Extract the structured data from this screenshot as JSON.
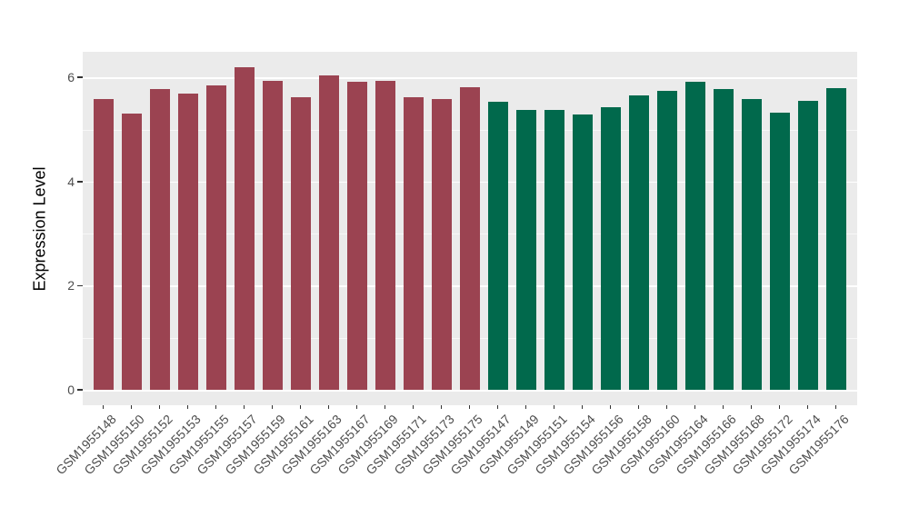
{
  "chart_data": {
    "type": "bar",
    "title": "",
    "xlabel": "",
    "ylabel": "Expression Level",
    "ylim": [
      -0.31,
      6.51
    ],
    "yticks": [
      0,
      2,
      4,
      6
    ],
    "yticks_minor": [
      1,
      3,
      5
    ],
    "grid": true,
    "legend_position": "none",
    "group_colors": [
      "#9B4351",
      "#01694C"
    ],
    "panel_background": "#EBEBEB",
    "grid_color": "#FFFFFF",
    "tick_mark_color": "#333333",
    "tick_label_color": "#4D4D4D",
    "axis_title_color": "#000000",
    "bars": [
      {
        "label": "GSM1955148",
        "value": 5.59,
        "group": 0
      },
      {
        "label": "GSM1955150",
        "value": 5.3,
        "group": 0
      },
      {
        "label": "GSM1955152",
        "value": 5.77,
        "group": 0
      },
      {
        "label": "GSM1955153",
        "value": 5.69,
        "group": 0
      },
      {
        "label": "GSM1955155",
        "value": 5.85,
        "group": 0
      },
      {
        "label": "GSM1955157",
        "value": 6.2,
        "group": 0
      },
      {
        "label": "GSM1955159",
        "value": 5.93,
        "group": 0
      },
      {
        "label": "GSM1955161",
        "value": 5.62,
        "group": 0
      },
      {
        "label": "GSM1955163",
        "value": 6.03,
        "group": 0
      },
      {
        "label": "GSM1955167",
        "value": 5.91,
        "group": 0
      },
      {
        "label": "GSM1955169",
        "value": 5.94,
        "group": 0
      },
      {
        "label": "GSM1955171",
        "value": 5.62,
        "group": 0
      },
      {
        "label": "GSM1955173",
        "value": 5.58,
        "group": 0
      },
      {
        "label": "GSM1955175",
        "value": 5.81,
        "group": 0
      },
      {
        "label": "GSM1955147",
        "value": 5.54,
        "group": 1
      },
      {
        "label": "GSM1955149",
        "value": 5.38,
        "group": 1
      },
      {
        "label": "GSM1955151",
        "value": 5.37,
        "group": 1
      },
      {
        "label": "GSM1955154",
        "value": 5.28,
        "group": 1
      },
      {
        "label": "GSM1955156",
        "value": 5.42,
        "group": 1
      },
      {
        "label": "GSM1955158",
        "value": 5.66,
        "group": 1
      },
      {
        "label": "GSM1955160",
        "value": 5.75,
        "group": 1
      },
      {
        "label": "GSM1955164",
        "value": 5.91,
        "group": 1
      },
      {
        "label": "GSM1955166",
        "value": 5.77,
        "group": 1
      },
      {
        "label": "GSM1955168",
        "value": 5.58,
        "group": 1
      },
      {
        "label": "GSM1955172",
        "value": 5.32,
        "group": 1
      },
      {
        "label": "GSM1955174",
        "value": 5.55,
        "group": 1
      },
      {
        "label": "GSM1955176",
        "value": 5.8,
        "group": 1
      }
    ]
  }
}
